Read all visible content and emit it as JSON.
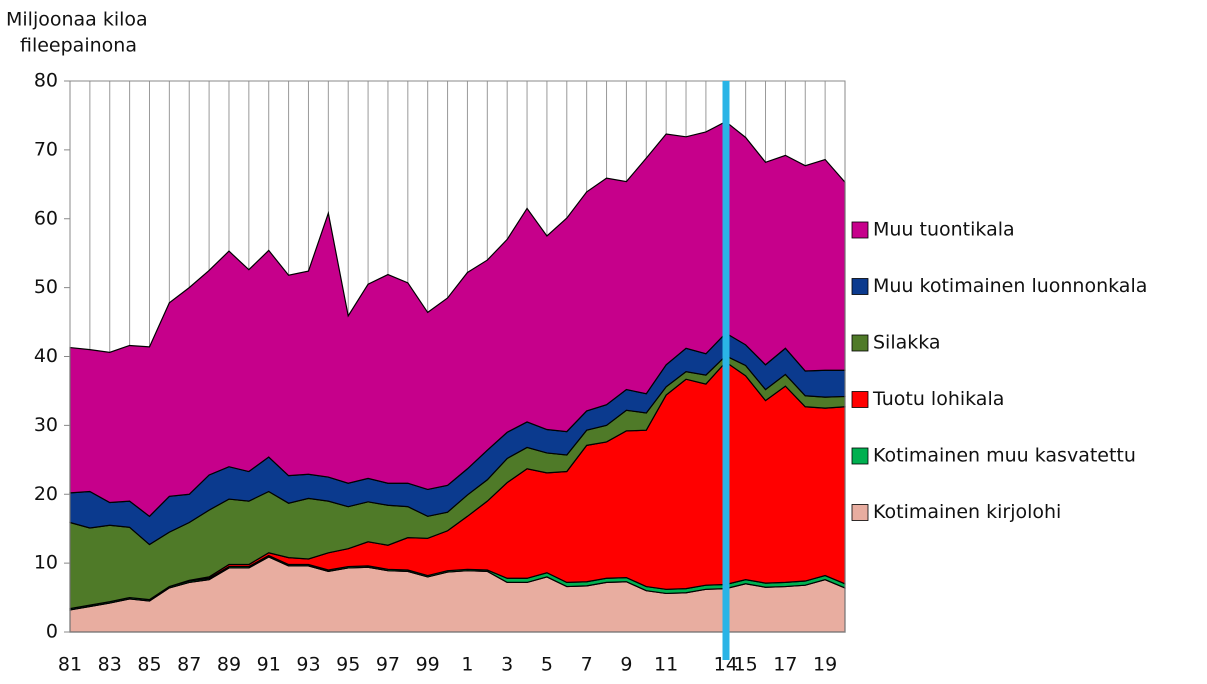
{
  "chart_data": {
    "type": "stacked_area",
    "y_label": [
      "Miljoonaa kiloa",
      "fileepainona"
    ],
    "categories": [
      "81",
      null,
      "83",
      null,
      "85",
      null,
      "87",
      null,
      "89",
      null,
      "91",
      null,
      "93",
      null,
      "95",
      null,
      "97",
      null,
      "99",
      null,
      "1",
      null,
      "3",
      null,
      "5",
      null,
      "7",
      null,
      "9",
      null,
      "11",
      null,
      null,
      "14",
      "15",
      null,
      "17",
      null,
      "19",
      null
    ],
    "ylim": [
      0,
      80
    ],
    "yticks": [
      0,
      10,
      20,
      30,
      40,
      50,
      60,
      70,
      80
    ],
    "grid": true,
    "legend": "right",
    "series": [
      {
        "name": "Kotimainen kirjolohi",
        "color": "#e8ada0",
        "values": [
          3.2,
          3.7,
          4.2,
          4.8,
          4.5,
          6.4,
          7.2,
          7.6,
          9.3,
          9.3,
          10.9,
          9.6,
          9.6,
          8.8,
          9.3,
          9.4,
          8.9,
          8.8,
          8,
          8.7,
          8.9,
          8.8,
          7.2,
          7.2,
          8,
          6.6,
          6.7,
          7.2,
          7.3,
          6,
          5.6,
          5.7,
          6.2,
          6.3,
          7,
          6.5,
          6.6,
          6.8,
          7.6,
          6.4
        ]
      },
      {
        "name": "Kotimainen muu kasvatettu",
        "color": "#00b050",
        "values": [
          0.2,
          0.2,
          0.2,
          0.2,
          0.2,
          0.2,
          0.2,
          0.2,
          0.2,
          0.2,
          0.2,
          0.2,
          0.2,
          0.2,
          0.2,
          0.2,
          0.2,
          0.2,
          0.2,
          0.2,
          0.2,
          0.2,
          0.6,
          0.6,
          0.6,
          0.6,
          0.6,
          0.6,
          0.6,
          0.6,
          0.6,
          0.6,
          0.6,
          0.6,
          0.6,
          0.6,
          0.6,
          0.6,
          0.6,
          0.6
        ]
      },
      {
        "name": "Tuotu lohikala",
        "color": "#ff0000",
        "values": [
          0,
          0,
          0,
          0,
          0,
          0,
          0.1,
          0.2,
          0.3,
          0.3,
          0.4,
          1.0,
          0.8,
          2.5,
          2.6,
          3.5,
          3.5,
          4.7,
          5.4,
          5.8,
          7.7,
          10,
          13.9,
          15.9,
          14.5,
          16.1,
          19.8,
          19.8,
          21.3,
          22.7,
          28.2,
          30.4,
          29.2,
          32.3,
          29.6,
          26.5,
          28.5,
          25.3,
          24.3,
          25.7
        ]
      },
      {
        "name": "Silakka",
        "color": "#4f7a28",
        "values": [
          12.5,
          11.2,
          11.1,
          10.2,
          8.0,
          7.9,
          8.4,
          9.7,
          9.5,
          9.2,
          8.9,
          7.9,
          8.8,
          7.5,
          6.1,
          5.8,
          5.8,
          4.5,
          3.2,
          2.7,
          3.1,
          3.1,
          3.5,
          3.1,
          2.9,
          2.4,
          2.2,
          2.4,
          3.0,
          2.5,
          1.2,
          1.1,
          1.3,
          0.9,
          1.5,
          1.6,
          1.7,
          1.6,
          1.6,
          1.5
        ]
      },
      {
        "name": "Muu kotimainen luonnonkala",
        "color": "#0b3a8e",
        "values": [
          4.3,
          5.3,
          3.3,
          3.8,
          4.1,
          5.2,
          4.1,
          5.1,
          4.7,
          4.3,
          5.0,
          4.0,
          3.5,
          3.5,
          3.4,
          3.4,
          3.2,
          3.4,
          3.9,
          3.9,
          3.8,
          4.3,
          3.8,
          3.7,
          3.4,
          3.4,
          2.8,
          3.0,
          3.0,
          2.8,
          3.2,
          3.4,
          3.1,
          3.3,
          3.0,
          3.6,
          3.8,
          3.6,
          3.9,
          3.8
        ]
      },
      {
        "name": "Muu tuontikala",
        "color": "#c6008b",
        "values": [
          21.1,
          20.6,
          21.8,
          22.6,
          24.6,
          28.1,
          30.0,
          29.7,
          31.3,
          29.3,
          30.0,
          29.1,
          29.5,
          38.3,
          24.3,
          28.2,
          30.3,
          29.1,
          25.7,
          27.2,
          28.5,
          27.6,
          28.0,
          31.0,
          28.1,
          31.0,
          31.8,
          32.9,
          30.2,
          34.2,
          33.5,
          30.7,
          32.2,
          30.7,
          30.1,
          29.4,
          28.0,
          29.8,
          30.6,
          27.3
        ]
      }
    ]
  }
}
